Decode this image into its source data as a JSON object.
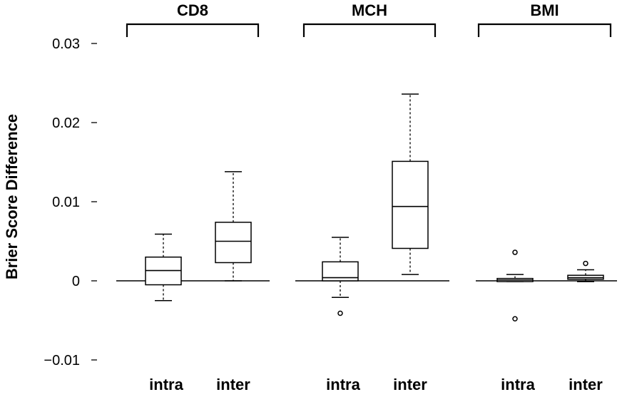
{
  "chart_data": {
    "type": "boxplot",
    "ylabel": "Brier Score Difference",
    "ylim": [
      -0.0115,
      0.0335
    ],
    "yticks": [
      -0.01,
      0,
      0.01,
      0.02,
      0.03
    ],
    "ytick_labels": [
      "−0.01",
      "0",
      "0.01",
      "0.02",
      "0.03"
    ],
    "reference_line": 0,
    "groups": [
      {
        "title": "CD8",
        "boxes": [
          {
            "category": "intra",
            "whisker_low": -0.0025,
            "q1": -0.0005,
            "median": 0.0013,
            "q3": 0.003,
            "whisker_high": 0.0059,
            "outliers": []
          },
          {
            "category": "inter",
            "whisker_low": 0.0,
            "q1": 0.0023,
            "median": 0.005,
            "q3": 0.0074,
            "whisker_high": 0.0138,
            "outliers": []
          }
        ]
      },
      {
        "title": "MCH",
        "boxes": [
          {
            "category": "intra",
            "whisker_low": -0.0021,
            "q1": 0.0,
            "median": 0.0004,
            "q3": 0.0024,
            "whisker_high": 0.0055,
            "outliers": [
              -0.0041
            ]
          },
          {
            "category": "inter",
            "whisker_low": 0.0008,
            "q1": 0.0041,
            "median": 0.0094,
            "q3": 0.0151,
            "whisker_high": 0.0236,
            "outliers": []
          }
        ]
      },
      {
        "title": "BMI",
        "boxes": [
          {
            "category": "intra",
            "whisker_low": -0.0001,
            "q1": -0.0001,
            "median": 0.0001,
            "q3": 0.0003,
            "whisker_high": 0.0008,
            "outliers": [
              0.0036,
              -0.0048
            ]
          },
          {
            "category": "inter",
            "whisker_low": -0.0001,
            "q1": 0.0002,
            "median": 0.0004,
            "q3": 0.0007,
            "whisker_high": 0.0014,
            "outliers": [
              0.0022
            ]
          }
        ]
      }
    ]
  }
}
